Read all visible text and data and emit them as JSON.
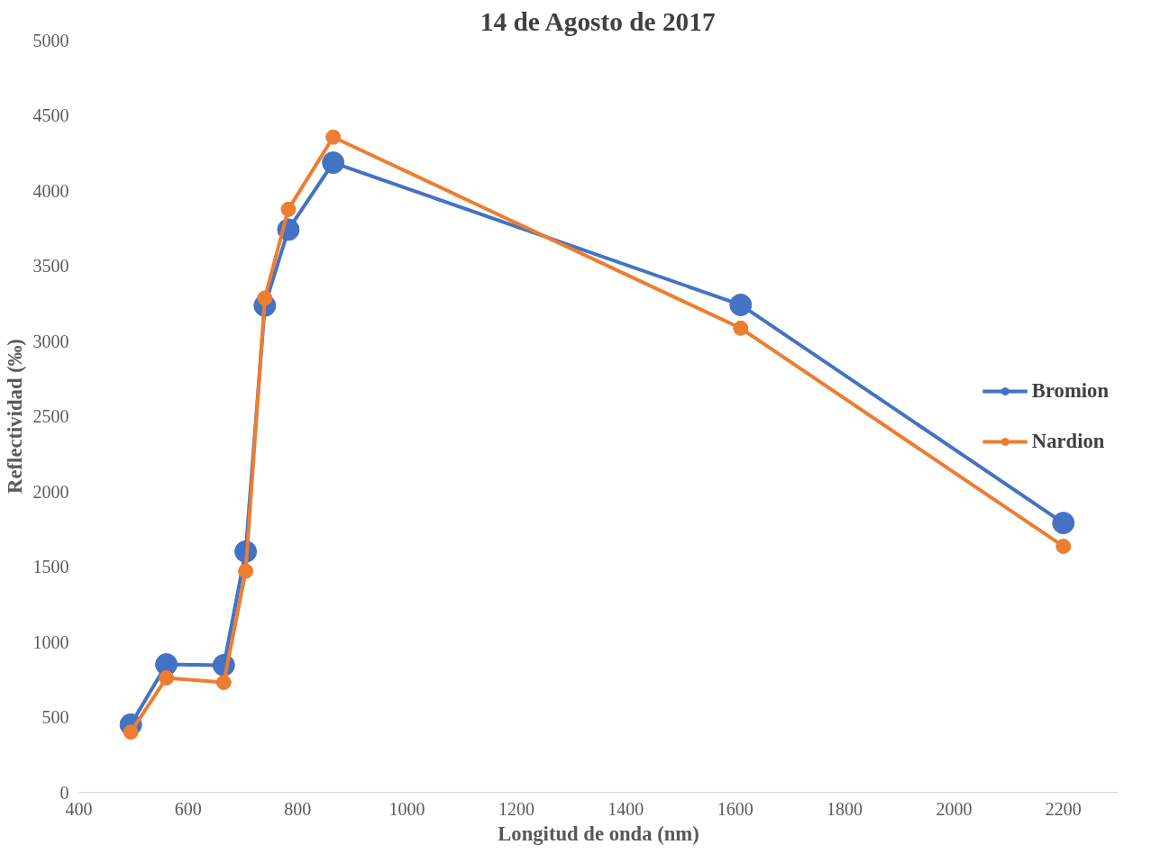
{
  "chart_data": {
    "type": "line",
    "title": "14 de Agosto de 2017",
    "xlabel": "Longitud de onda (nm)",
    "ylabel": "Reflectividad (‰)",
    "x": [
      495,
      560,
      665,
      705,
      740,
      783,
      865,
      1610,
      2200
    ],
    "series": [
      {
        "name": "Bromion",
        "color": "#4472c4",
        "values": [
          450,
          850,
          845,
          1600,
          3235,
          3740,
          4185,
          3240,
          1790
        ]
      },
      {
        "name": "Nardion",
        "color": "#ed7d31",
        "values": [
          400,
          760,
          730,
          1470,
          3285,
          3875,
          4355,
          3085,
          1635
        ]
      }
    ],
    "xlim": [
      400,
      2300
    ],
    "xticks": [
      400,
      600,
      800,
      1000,
      1200,
      1400,
      1600,
      1800,
      2000,
      2200
    ],
    "ylim": [
      0,
      5000
    ],
    "yticks": [
      0,
      500,
      1000,
      1500,
      2000,
      2500,
      3000,
      3500,
      4000,
      4500,
      5000
    ],
    "grid": false,
    "legend": "right",
    "marker": "circle",
    "line_style": "solid"
  }
}
